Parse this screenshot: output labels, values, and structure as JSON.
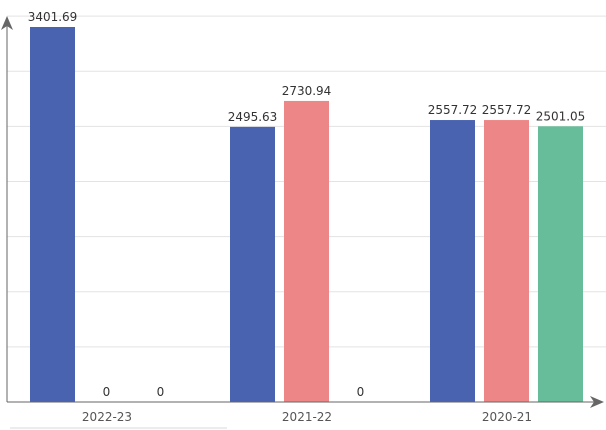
{
  "chart_data": {
    "type": "bar",
    "categories": [
      "2022-23",
      "2021-22",
      "2020-21"
    ],
    "series": [
      {
        "values": [
          3401.69,
          2495.63,
          2557.72
        ],
        "color": "#4963b0"
      },
      {
        "values": [
          0,
          2730.94,
          2557.72
        ],
        "color": "#ed8787"
      },
      {
        "values": [
          0,
          0,
          2501.05
        ],
        "color": "#67bc99"
      }
    ],
    "ylim": [
      0,
      3500
    ],
    "grid": true,
    "data_labels": true,
    "title": "",
    "xlabel": "",
    "ylabel": ""
  }
}
